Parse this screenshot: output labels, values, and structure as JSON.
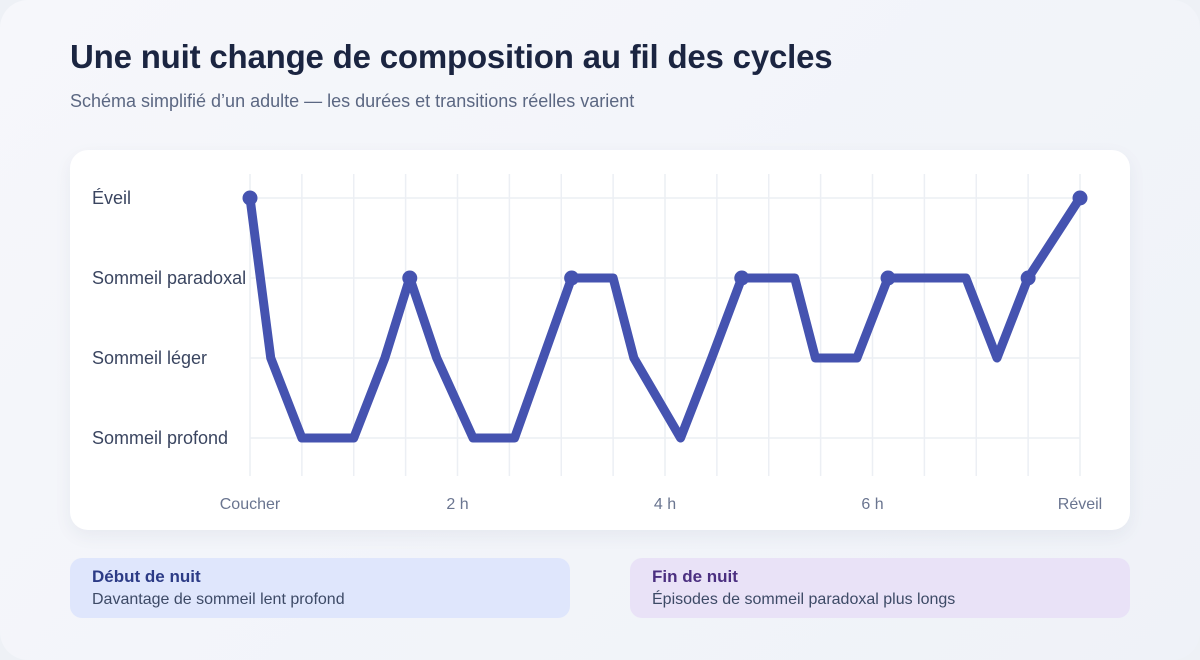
{
  "header": {
    "title": "Une nuit change de composition au fil des cycles",
    "subtitle": "Schéma simplifié d’un adulte — les durées et transitions réelles varient"
  },
  "chart_data": {
    "type": "line",
    "title": "",
    "xlabel": "",
    "ylabel": "",
    "y_categories": [
      "Sommeil profond",
      "Sommeil léger",
      "Sommeil paradoxal",
      "Éveil"
    ],
    "x_ticks": [
      {
        "x": 0,
        "label": "Coucher"
      },
      {
        "x": 2,
        "label": "2 h"
      },
      {
        "x": 4,
        "label": "4 h"
      },
      {
        "x": 6,
        "label": "6 h"
      },
      {
        "x": 8,
        "label": "Réveil"
      }
    ],
    "xlim": [
      0,
      8
    ],
    "grid": true,
    "series": [
      {
        "color": "#4553b0",
        "x": [
          0,
          0.2,
          0.5,
          1.0,
          1.3,
          1.54,
          1.8,
          2.15,
          2.55,
          3.1,
          3.5,
          3.7,
          4.15,
          4.45,
          4.74,
          5.25,
          5.45,
          5.85,
          6.15,
          6.9,
          7.2,
          7.5,
          8.0
        ],
        "y": [
          3,
          1,
          0,
          0,
          1,
          2,
          1,
          0,
          0,
          2,
          2,
          1,
          0,
          1,
          2,
          2,
          1,
          1,
          2,
          2,
          1,
          2,
          3
        ],
        "markers": [
          0,
          5,
          9,
          14,
          18,
          21,
          22
        ]
      }
    ]
  },
  "notes": {
    "left": {
      "title": "Début de nuit",
      "text": "Davantage de sommeil lent profond"
    },
    "right": {
      "title": "Fin de nuit",
      "text": "Épisodes de sommeil paradoxal plus longs"
    }
  }
}
